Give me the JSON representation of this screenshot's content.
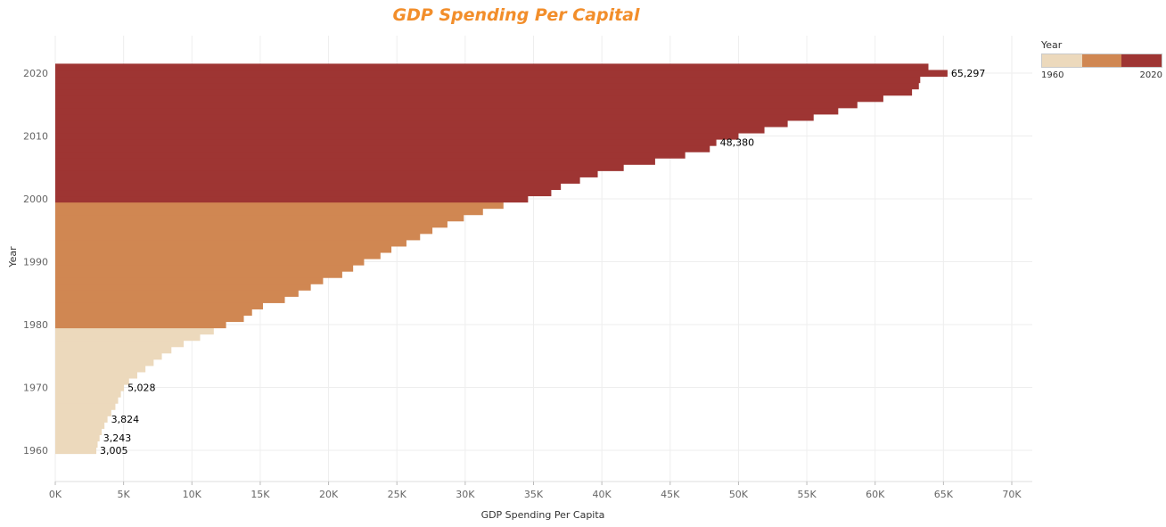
{
  "title": "GDP Spending Per Capital",
  "chart_data": {
    "type": "bar",
    "orientation": "horizontal",
    "xlabel": "GDP Spending Per Capita",
    "ylabel": "Year",
    "xlim": [
      0,
      70000
    ],
    "ylim": [
      1960,
      2020
    ],
    "x_ticks": [
      "0K",
      "5K",
      "10K",
      "15K",
      "20K",
      "25K",
      "30K",
      "35K",
      "40K",
      "45K",
      "50K",
      "55K",
      "60K",
      "65K",
      "70K"
    ],
    "y_ticks": [
      "1960",
      "1970",
      "1980",
      "1990",
      "2000",
      "2010",
      "2020"
    ],
    "grid": true,
    "years": [
      1960,
      1961,
      1962,
      1963,
      1964,
      1965,
      1966,
      1967,
      1968,
      1969,
      1970,
      1971,
      1972,
      1973,
      1974,
      1975,
      1976,
      1977,
      1978,
      1979,
      1980,
      1981,
      1982,
      1983,
      1984,
      1985,
      1986,
      1987,
      1988,
      1989,
      1990,
      1991,
      1992,
      1993,
      1994,
      1995,
      1996,
      1997,
      1998,
      1999,
      2000,
      2001,
      2002,
      2003,
      2004,
      2005,
      2006,
      2007,
      2008,
      2009,
      2010,
      2011,
      2012,
      2013,
      2014,
      2015,
      2016,
      2017,
      2018,
      2019,
      2020,
      2021
    ],
    "values": [
      3005,
      3100,
      3243,
      3400,
      3600,
      3824,
      4100,
      4400,
      4600,
      4800,
      5028,
      5400,
      6000,
      6600,
      7200,
      7800,
      8500,
      9400,
      10600,
      11600,
      12500,
      13800,
      14400,
      15200,
      16800,
      17800,
      18700,
      19600,
      21000,
      21800,
      22600,
      23800,
      24600,
      25700,
      26700,
      27600,
      28700,
      29900,
      31300,
      32800,
      34600,
      36300,
      37000,
      38400,
      39700,
      41600,
      43900,
      46100,
      47900,
      48380,
      50000,
      51900,
      53600,
      55500,
      57300,
      58700,
      60600,
      62700,
      63200,
      63300,
      65297,
      63900
    ],
    "data_labels": [
      {
        "year": 1960,
        "text": "3,005"
      },
      {
        "year": 1962,
        "text": "3,243"
      },
      {
        "year": 1965,
        "text": "3,824"
      },
      {
        "year": 1970,
        "text": "5,028"
      },
      {
        "year": 2009,
        "text": "48,380"
      },
      {
        "year": 2020,
        "text": "65,297"
      }
    ],
    "color_groups": [
      {
        "from": 1960,
        "to": 1979,
        "color": "#ecd9bc"
      },
      {
        "from": 1980,
        "to": 1999,
        "color": "#d08752"
      },
      {
        "from": 2000,
        "to": 2021,
        "color": "#9e3533"
      }
    ]
  },
  "legend": {
    "title": "Year",
    "min_label": "1960",
    "max_label": "2020",
    "colors": [
      "#ecd9bc",
      "#d08752",
      "#9e3533"
    ]
  }
}
